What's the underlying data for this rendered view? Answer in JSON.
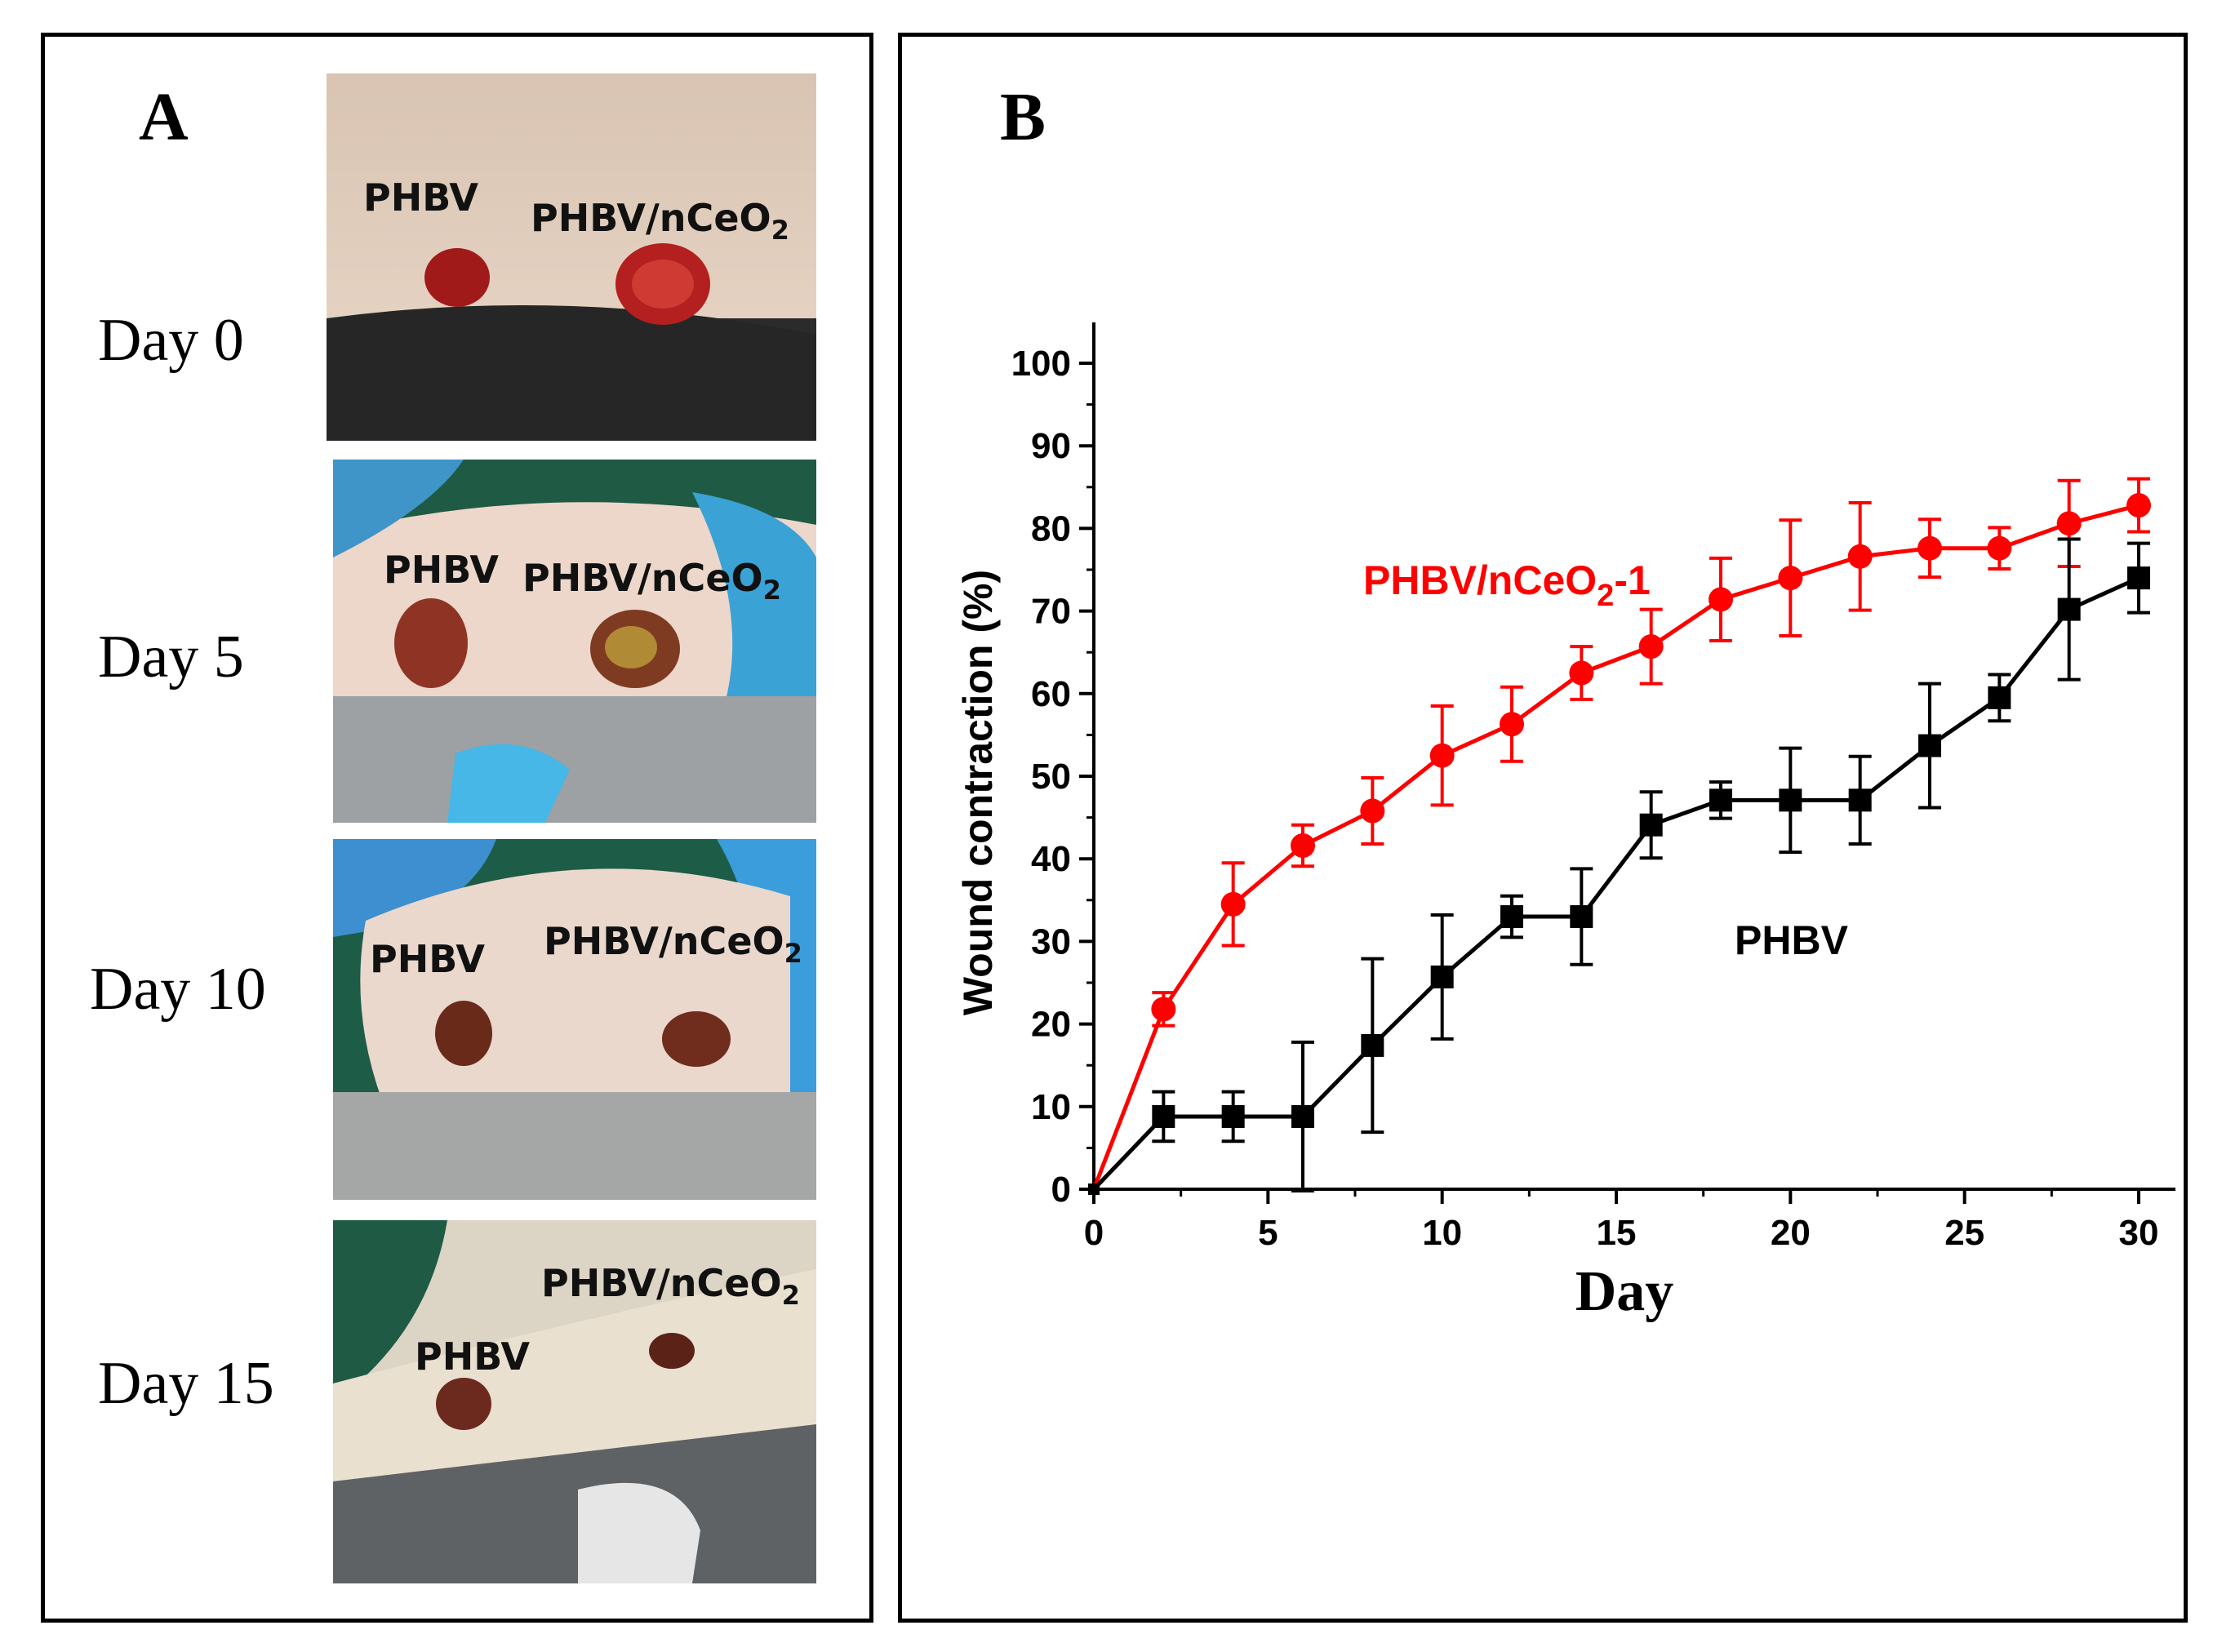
{
  "panel_a": {
    "letter": "A",
    "rows": [
      {
        "day": "Day 0",
        "label_left": "PHBV",
        "label_right_main": "PHBV/nCeO",
        "label_right_sub": "2"
      },
      {
        "day": "Day 5",
        "label_left": "PHBV",
        "label_right_main": "PHBV/nCeO",
        "label_right_sub": "2"
      },
      {
        "day": "Day 10",
        "label_left": "PHBV",
        "label_right_main": "PHBV/nCeO",
        "label_right_sub": "2"
      },
      {
        "day": "Day 15",
        "label_left": "PHBV",
        "label_right_main": "PHBV/nCeO",
        "label_right_sub": "2"
      }
    ]
  },
  "panel_b": {
    "letter": "B"
  },
  "chart_data": {
    "type": "line",
    "title": "",
    "xlabel": "Day",
    "ylabel": "Wound contraction (%)",
    "xlim": [
      0,
      30
    ],
    "ylim": [
      0,
      100
    ],
    "xticks": [
      0,
      5,
      10,
      15,
      20,
      25,
      30
    ],
    "yticks": [
      0,
      10,
      20,
      30,
      40,
      50,
      60,
      70,
      80,
      90,
      100
    ],
    "series": [
      {
        "name": "PHBV/nCeO2-1",
        "label_main": "PHBV/nCeO",
        "label_sub": "2",
        "label_suffix": "-1",
        "color": "#ff0000",
        "marker": "circle",
        "x": [
          0,
          2,
          4,
          6,
          8,
          10,
          12,
          14,
          16,
          18,
          20,
          22,
          24,
          26,
          28,
          30
        ],
        "y": [
          0,
          21.8,
          34.5,
          41.6,
          45.8,
          52.5,
          56.3,
          62.5,
          65.7,
          71.4,
          74,
          76.6,
          77.6,
          77.6,
          80.6,
          82.8
        ],
        "err": [
          0,
          2,
          5,
          2.5,
          4,
          6,
          4.5,
          3.2,
          4.5,
          5,
          7,
          6.5,
          3.5,
          2.5,
          5.2,
          3.2
        ]
      },
      {
        "name": "PHBV",
        "label_main": "PHBV",
        "label_sub": "",
        "label_suffix": "",
        "color": "#000000",
        "marker": "square",
        "x": [
          0,
          2,
          4,
          6,
          8,
          10,
          12,
          14,
          16,
          18,
          20,
          22,
          24,
          26,
          28,
          30
        ],
        "y": [
          0,
          8.8,
          8.8,
          8.8,
          17.4,
          25.7,
          33,
          33,
          44.1,
          47.1,
          47.1,
          47.1,
          53.7,
          59.5,
          70.2,
          74
        ],
        "err": [
          0,
          3,
          3,
          9,
          10.5,
          7.5,
          2.5,
          5.8,
          4,
          2.2,
          6.3,
          5.3,
          7.5,
          2.8,
          8.5,
          4.2
        ]
      }
    ]
  }
}
